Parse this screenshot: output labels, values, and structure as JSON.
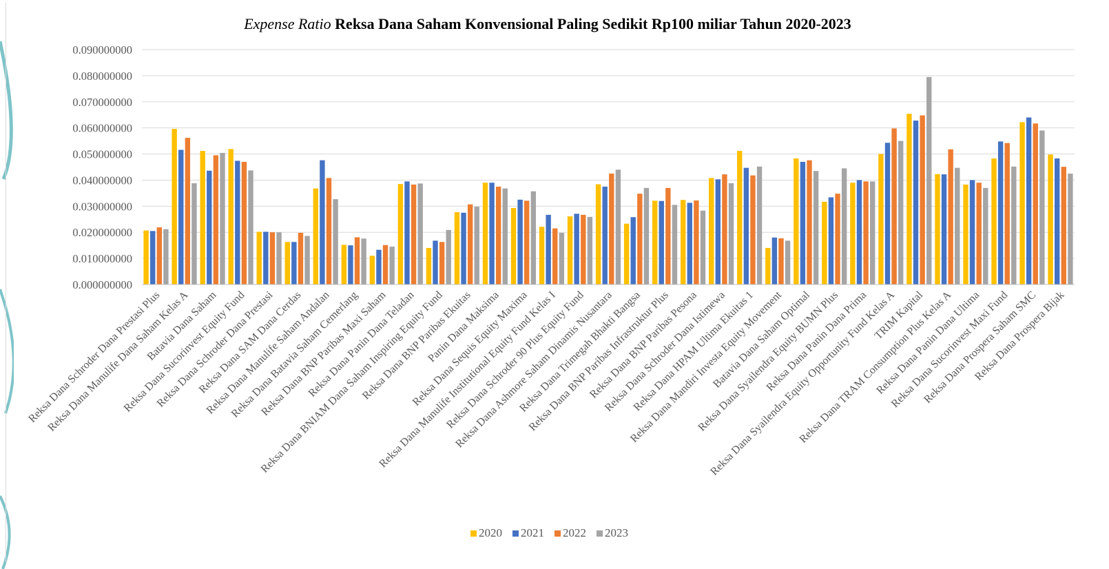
{
  "chart_data": {
    "type": "bar",
    "title_italic": "Expense Ratio",
    "title_rest": " Reksa Dana Saham Konvensional Paling Sedikit Rp100 miliar Tahun 2020-2023",
    "xlabel": "",
    "ylabel": "",
    "ylim": [
      0,
      0.09
    ],
    "yticks": [
      "0.000000000",
      "0.010000000",
      "0.020000000",
      "0.030000000",
      "0.040000000",
      "0.050000000",
      "0.060000000",
      "0.070000000",
      "0.080000000",
      "0.090000000"
    ],
    "grid": true,
    "legend_position": "bottom",
    "categories": [
      "Reksa Dana Schroder Dana Prestasi Plus",
      "Reksa Dana Manulife Dana Saham Kelas A",
      "Batavia Dana Saham",
      "Reksa Dana Sucorinvest Equity Fund",
      "Reksa Dana Schroder Dana Prestasi",
      "Reksa Dana SAM Dana Cerdas",
      "Reksa Dana Manulife Saham Andalan",
      "Reksa Dana Batavia Saham Cemerlang",
      "Reksa Dana BNP Paribas Maxi Saham",
      "Reksa Dana Panin Dana Teladan",
      "Reksa Dana BNIAM Dana Saham Inspiring Equity Fund",
      "Reksa Dana BNP Paribas Ekuitas",
      "Panin Dana Maksima",
      "Reksa Dana Sequis Equity Maxima",
      "Reksa Dana Manulife Institutional Equity Fund Kelas I",
      "Reksa Dana Schroder 90 Plus Equity Fund",
      "Reksa Dana Ashmore Saham Dinamis Nusantara",
      "Reksa Dana Trimegah Bhakti Bangsa",
      "Reksa Dana BNP Paribas Infrastruktur Plus",
      "Reksa Dana BNP Paribas Pesona",
      "Reksa Dana Schroder Dana Istimewa",
      "Reksa Dana HPAM Ultima Ekuitas 1",
      "Reksa Dana Mandiri Investa Equity Movement",
      "Batavia Dana Saham Optimal",
      "Reksa Dana Syailendra Equity BUMN Plus",
      "Reksa Dana Panin Dana Prima",
      "Reksa Dana Syailendra Equity Opportunity Fund Kelas A",
      "TRIM Kapital",
      "Reksa Dana TRAM Consumption Plus Kelas A",
      "Reksa Dana Panin Dana Ultima",
      "Reksa Dana Sucorinvest Maxi Fund",
      "Reksa Dana Prospera Saham SMC",
      "Reksa Dana Prospera Bijak"
    ],
    "series": [
      {
        "name": "2020",
        "color": "#FFC000",
        "values": [
          0.0207,
          0.0596,
          0.0512,
          0.0519,
          0.0202,
          0.0163,
          0.0368,
          0.0152,
          0.011,
          0.0385,
          0.014,
          0.0277,
          0.039,
          0.0293,
          0.0221,
          0.0261,
          0.0384,
          0.0233,
          0.0321,
          0.0324,
          0.0408,
          0.0512,
          0.014,
          0.0483,
          0.0317,
          0.039,
          0.05,
          0.0654,
          0.0423,
          0.0383,
          0.0483,
          0.0622,
          0.0498
        ]
      },
      {
        "name": "2021",
        "color": "#4472C4",
        "values": [
          0.0205,
          0.0516,
          0.0436,
          0.0474,
          0.0202,
          0.0163,
          0.0476,
          0.015,
          0.0133,
          0.0395,
          0.0168,
          0.0275,
          0.039,
          0.0325,
          0.0267,
          0.0271,
          0.0375,
          0.0258,
          0.032,
          0.0313,
          0.0403,
          0.0447,
          0.018,
          0.047,
          0.0334,
          0.04,
          0.0543,
          0.0628,
          0.0422,
          0.04,
          0.0548,
          0.064,
          0.0483
        ]
      },
      {
        "name": "2022",
        "color": "#ED7D31",
        "values": [
          0.0219,
          0.0562,
          0.0495,
          0.047,
          0.02,
          0.0198,
          0.0408,
          0.0181,
          0.0151,
          0.0383,
          0.0163,
          0.0307,
          0.0375,
          0.0321,
          0.0215,
          0.0267,
          0.0425,
          0.0348,
          0.037,
          0.0322,
          0.0422,
          0.0418,
          0.0177,
          0.0476,
          0.0348,
          0.0395,
          0.0598,
          0.0648,
          0.0518,
          0.039,
          0.0542,
          0.0617,
          0.0451
        ]
      },
      {
        "name": "2023",
        "color": "#A5A5A5",
        "values": [
          0.0212,
          0.0388,
          0.0504,
          0.0437,
          0.02,
          0.0186,
          0.0327,
          0.0176,
          0.0145,
          0.0387,
          0.0209,
          0.0298,
          0.0368,
          0.0357,
          0.0198,
          0.0259,
          0.044,
          0.037,
          0.0305,
          0.0283,
          0.0388,
          0.0452,
          0.0168,
          0.0435,
          0.0445,
          0.0395,
          0.055,
          0.0795,
          0.0447,
          0.037,
          0.0452,
          0.059,
          0.0425
        ]
      }
    ]
  }
}
